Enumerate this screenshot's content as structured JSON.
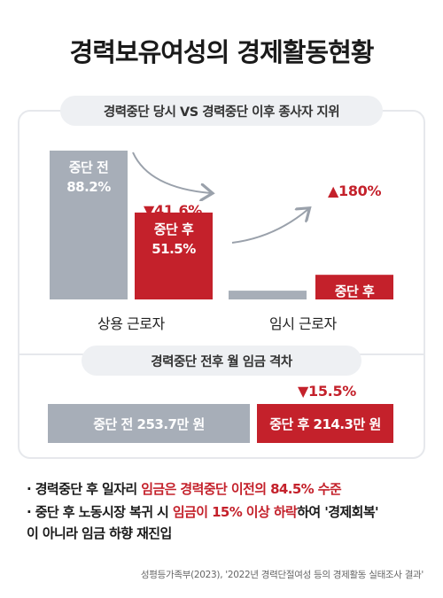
{
  "title": "경력보유여성의 경제활동현황",
  "section1_title": "경력중단 당시 VS 경력중단 이후 종사자 지위",
  "section2_title": "경력중단 전후 월 임금 격차",
  "chart_data": [
    {
      "type": "bar",
      "title": "경력중단 당시 VS 경력중단 이후 종사자 지위",
      "categories": [
        "상용 근로자",
        "임시 근로자"
      ],
      "series": [
        {
          "name": "중단 전",
          "values": [
            88.2,
            5.2
          ],
          "labels": [
            "88.2%",
            "5.2%"
          ]
        },
        {
          "name": "중단 후",
          "values": [
            51.5,
            14.6
          ],
          "labels": [
            "51.5%",
            "14.6%"
          ]
        }
      ],
      "changes": [
        "▼41.6%",
        "▲180%"
      ],
      "colors": {
        "before": "#a7aeb8",
        "after": "#c4212b"
      }
    },
    {
      "type": "bar",
      "title": "경력중단 전후 월 임금 격차",
      "orientation": "horizontal",
      "categories": [
        "중단 전",
        "중단 후"
      ],
      "values": [
        253.7,
        214.3
      ],
      "labels": [
        "중단 전 253.7만 원",
        "중단 후 214.3만 원"
      ],
      "unit": "만 원",
      "change": "▼15.5%",
      "colors": {
        "before": "#a7aeb8",
        "after": "#c4212b"
      }
    }
  ],
  "bullets": [
    {
      "prefix": "· 경력중단 후 일자리 ",
      "highlight": "임금은 경력중단 이전의 84.5% 수준",
      "suffix": ""
    },
    {
      "prefix": "· 중단 후 노동시장 복귀 시 ",
      "highlight": "임금이 15% 이상 하락",
      "suffix": "하여 '경제회복'",
      "line2": "이 아니라 임금 하향 재진입"
    }
  ],
  "source": "성평등가족부(2023), '2022년 경력단절여성 등의 경제활동 실태조사 결과'"
}
